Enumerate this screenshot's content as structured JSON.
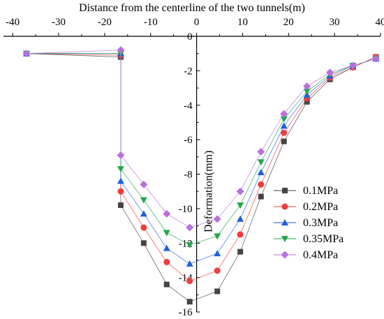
{
  "chart_data": {
    "type": "line",
    "title": "Distance from the centerline of the two tunnels(m)",
    "xlabel": "Distance from the centerline of the two tunnels(m)",
    "ylabel": "Deformation(mm)",
    "xlim": [
      -42,
      40
    ],
    "ylim": [
      -16,
      0
    ],
    "x_axis_position": "top",
    "y_axis_position": "x=0",
    "xticks": [
      -40,
      -30,
      -20,
      -10,
      0,
      10,
      20,
      30,
      40
    ],
    "yticks": [
      0,
      -2,
      -4,
      -6,
      -8,
      -10,
      -12,
      -14,
      -16
    ],
    "legend_position": "right",
    "x": [
      -37,
      -16.5,
      -16.5,
      -11.5,
      -6.5,
      -1.5,
      4.5,
      9.5,
      14,
      19,
      24,
      29,
      34,
      39
    ],
    "series": [
      {
        "name": "0.1MPa",
        "color": "#444444",
        "marker": "square",
        "values": [
          -1.0,
          -1.2,
          -9.8,
          -12.0,
          -14.4,
          -15.4,
          -14.8,
          -12.5,
          -9.3,
          -6.1,
          -3.8,
          -2.5,
          -1.8,
          -1.2
        ]
      },
      {
        "name": "0.2MPa",
        "color": "#f03c3c",
        "marker": "circle",
        "values": [
          -1.0,
          -1.1,
          -9.0,
          -11.1,
          -13.1,
          -14.2,
          -13.6,
          -11.5,
          -8.6,
          -5.6,
          -3.6,
          -2.4,
          -1.8,
          -1.2
        ]
      },
      {
        "name": "0.3MPa",
        "color": "#1f5fe0",
        "marker": "triangle-up",
        "values": [
          -1.0,
          -1.0,
          -8.4,
          -10.3,
          -12.3,
          -13.2,
          -12.6,
          -10.6,
          -7.9,
          -5.2,
          -3.4,
          -2.3,
          -1.7,
          -1.3
        ]
      },
      {
        "name": "0.35MPa",
        "color": "#22a84a",
        "marker": "triangle-down",
        "values": [
          -1.0,
          -1.0,
          -7.7,
          -9.5,
          -11.4,
          -12.1,
          -11.6,
          -9.8,
          -7.3,
          -4.8,
          -3.2,
          -2.2,
          -1.7,
          -1.3
        ]
      },
      {
        "name": "0.4MPa",
        "color": "#b870e0",
        "marker": "diamond",
        "values": [
          -1.0,
          -0.8,
          -6.9,
          -8.6,
          -10.3,
          -11.1,
          -10.6,
          -9.0,
          -6.7,
          -4.5,
          -2.9,
          -2.1,
          -1.7,
          -1.3
        ]
      }
    ]
  }
}
